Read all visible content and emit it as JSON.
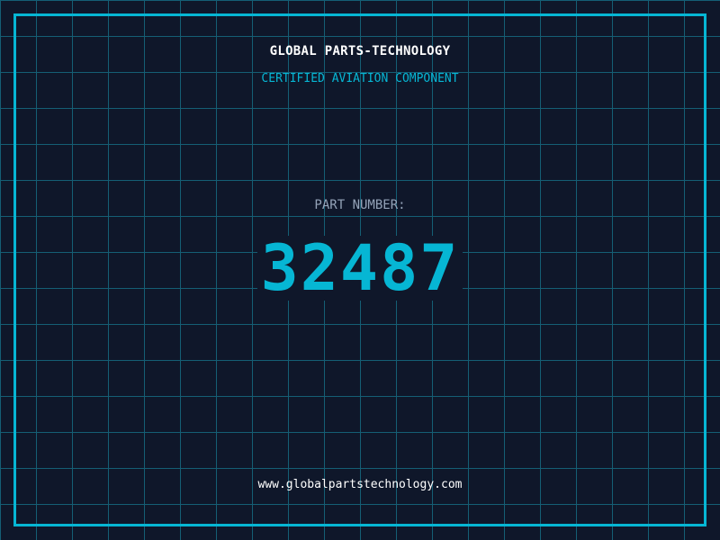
{
  "header": {
    "brand": "GLOBAL PARTS-TECHNOLOGY",
    "subtitle": "CERTIFIED AVIATION COMPONENT"
  },
  "part": {
    "label": "PART NUMBER:",
    "number": "32487"
  },
  "footer": {
    "url": "www.globalpartstechnology.com"
  },
  "colors": {
    "background": "#0f172a",
    "accent": "#06b6d4",
    "grid": "#155e75",
    "label": "#94a3b8"
  }
}
